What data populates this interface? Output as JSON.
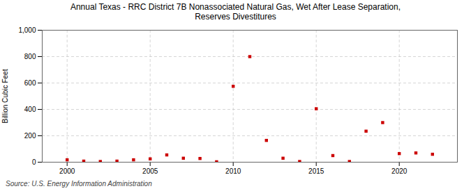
{
  "chart_data": {
    "type": "scatter",
    "title": "Annual Texas - RRC District 7B Nonassociated Natural Gas, Wet After Lease Separation,\nReserves Divestitures",
    "ylabel": "Billion Cubic Feet",
    "caption": "Source: U.S. Energy Information Administration",
    "x": [
      2000,
      2001,
      2002,
      2003,
      2004,
      2005,
      2006,
      2007,
      2008,
      2009,
      2010,
      2011,
      2012,
      2013,
      2014,
      2015,
      2016,
      2017,
      2018,
      2019,
      2020,
      2021,
      2022
    ],
    "values": [
      18,
      8,
      5,
      8,
      18,
      25,
      55,
      30,
      28,
      3,
      575,
      800,
      165,
      30,
      5,
      405,
      50,
      5,
      235,
      300,
      65,
      70,
      60
    ],
    "color": "#cc0000",
    "marker": "square",
    "xlim": [
      1998.5,
      2023.5
    ],
    "xticks": [
      2000,
      2005,
      2010,
      2015,
      2020
    ],
    "ylim": [
      0,
      1000
    ],
    "yticks": [
      0,
      200,
      400,
      600,
      800,
      {
        "value": 1000,
        "label": "1,000"
      }
    ],
    "grid": true
  }
}
